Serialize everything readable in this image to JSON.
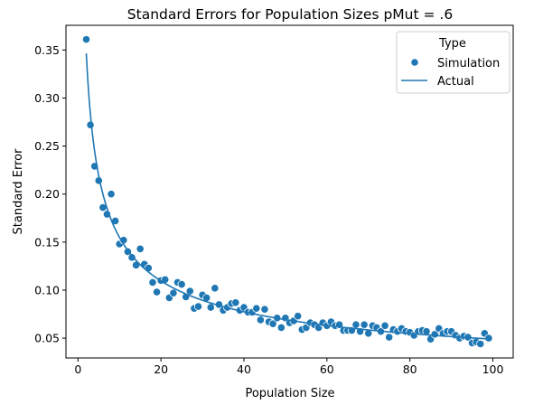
{
  "chart_data": {
    "type": "scatter",
    "title": "Standard Errors for Population Sizes pMut = .6",
    "xlabel": "Population Size",
    "ylabel": "Standard Error",
    "xlim": [
      -2.9,
      104.9
    ],
    "ylim": [
      0.0294,
      0.3757
    ],
    "xticks": [
      0,
      20,
      40,
      60,
      80,
      100
    ],
    "xtick_labels": [
      "0",
      "20",
      "40",
      "60",
      "80",
      "100"
    ],
    "yticks": [
      0.05,
      0.1,
      0.15,
      0.2,
      0.25,
      0.3,
      0.35
    ],
    "ytick_labels": [
      "0.05",
      "0.10",
      "0.15",
      "0.20",
      "0.25",
      "0.30",
      "0.35"
    ],
    "grid": false,
    "legend": {
      "title": "Type",
      "placement": "top-right",
      "entries": [
        "Simulation",
        "Actual"
      ]
    },
    "colors": {
      "series": "#1f77b4",
      "axis": "#000000",
      "background": "#ffffff"
    },
    "series": [
      {
        "name": "Simulation",
        "kind": "scatter",
        "x": [
          2,
          3,
          4,
          5,
          6,
          7,
          8,
          9,
          10,
          11,
          12,
          13,
          14,
          15,
          16,
          17,
          18,
          19,
          20,
          21,
          22,
          23,
          24,
          25,
          26,
          27,
          28,
          29,
          30,
          31,
          32,
          33,
          34,
          35,
          36,
          37,
          38,
          39,
          40,
          41,
          42,
          43,
          44,
          45,
          46,
          47,
          48,
          49,
          50,
          51,
          52,
          53,
          54,
          55,
          56,
          57,
          58,
          59,
          60,
          61,
          62,
          63,
          64,
          65,
          66,
          67,
          68,
          69,
          70,
          71,
          72,
          73,
          74,
          75,
          76,
          77,
          78,
          79,
          80,
          81,
          82,
          83,
          84,
          85,
          86,
          87,
          88,
          89,
          90,
          91,
          92,
          93,
          94,
          95,
          96,
          97,
          98,
          99
        ],
        "y": [
          0.361,
          0.272,
          0.229,
          0.214,
          0.186,
          0.179,
          0.2,
          0.172,
          0.148,
          0.152,
          0.14,
          0.134,
          0.126,
          0.143,
          0.127,
          0.123,
          0.108,
          0.098,
          0.11,
          0.111,
          0.092,
          0.097,
          0.108,
          0.106,
          0.093,
          0.099,
          0.081,
          0.083,
          0.095,
          0.092,
          0.082,
          0.102,
          0.085,
          0.079,
          0.082,
          0.086,
          0.087,
          0.079,
          0.082,
          0.077,
          0.077,
          0.081,
          0.069,
          0.08,
          0.067,
          0.065,
          0.071,
          0.061,
          0.071,
          0.066,
          0.068,
          0.073,
          0.059,
          0.061,
          0.066,
          0.064,
          0.061,
          0.066,
          0.063,
          0.067,
          0.063,
          0.064,
          0.058,
          0.058,
          0.058,
          0.064,
          0.057,
          0.064,
          0.055,
          0.063,
          0.061,
          0.057,
          0.063,
          0.051,
          0.059,
          0.057,
          0.06,
          0.057,
          0.056,
          0.053,
          0.057,
          0.058,
          0.057,
          0.049,
          0.054,
          0.06,
          0.055,
          0.057,
          0.057,
          0.053,
          0.05,
          0.052,
          0.051,
          0.045,
          0.046,
          0.044,
          0.055,
          0.05
        ]
      },
      {
        "name": "Actual",
        "kind": "line",
        "formula": "0.49/sqrt(x)",
        "x_start": 2,
        "x_end": 99
      }
    ]
  }
}
